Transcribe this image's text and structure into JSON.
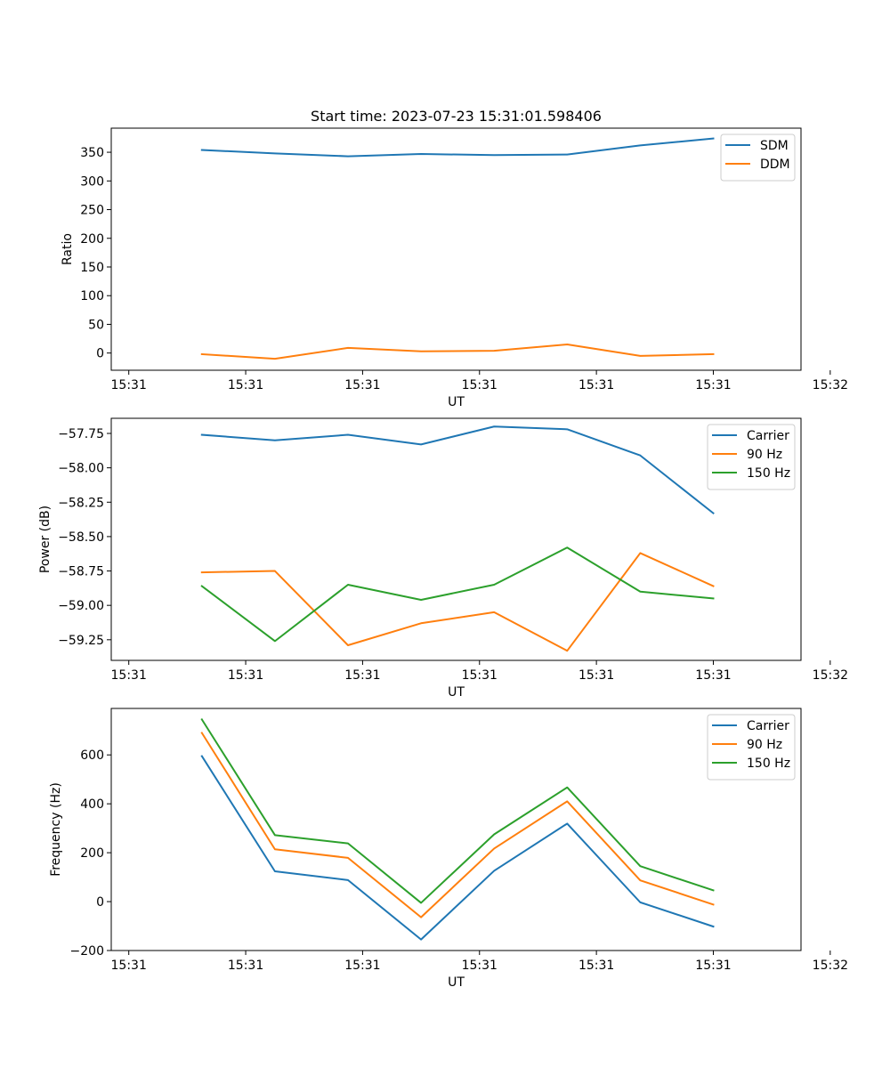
{
  "figure_title": "Start time: 2023-07-23 15:31:01.598406",
  "colors": {
    "c0": "#1f77b4",
    "c1": "#ff7f0e",
    "c2": "#2ca02c"
  },
  "chart_data": [
    {
      "type": "line",
      "title": "Start time: 2023-07-23 15:31:01.598406",
      "xlabel": "UT",
      "ylabel": "Ratio",
      "x": [
        0.5,
        1,
        1.5,
        2,
        2.5,
        3,
        3.5,
        4
      ],
      "xlim": [
        -0.12,
        4.6
      ],
      "x_ticks": [
        0,
        0.8,
        1.6,
        2.4,
        3.2,
        4.0,
        4.8
      ],
      "x_tick_labels": [
        "15:31",
        "15:31",
        "15:31",
        "15:31",
        "15:31",
        "15:31",
        "15:32"
      ],
      "ylim": [
        -30,
        392
      ],
      "y_ticks": [
        0,
        50,
        100,
        150,
        200,
        250,
        300,
        350
      ],
      "y_tick_labels": [
        "0",
        "50",
        "100",
        "150",
        "200",
        "250",
        "300",
        "350"
      ],
      "legend_position": "top-right",
      "grid": false,
      "series": [
        {
          "name": "SDM",
          "color_key": "c0",
          "values": [
            354,
            348,
            343,
            347,
            345,
            346,
            362,
            374
          ]
        },
        {
          "name": "DDM",
          "color_key": "c1",
          "values": [
            -2,
            -10,
            9,
            3,
            4,
            15,
            -5,
            -2
          ]
        }
      ]
    },
    {
      "type": "line",
      "title": "",
      "xlabel": "UT",
      "ylabel": "Power (dB)",
      "x": [
        0.5,
        1,
        1.5,
        2,
        2.5,
        3,
        3.5,
        4
      ],
      "xlim": [
        -0.12,
        4.6
      ],
      "x_ticks": [
        0,
        0.8,
        1.6,
        2.4,
        3.2,
        4.0,
        4.8
      ],
      "x_tick_labels": [
        "15:31",
        "15:31",
        "15:31",
        "15:31",
        "15:31",
        "15:31",
        "15:32"
      ],
      "ylim": [
        -59.4,
        -57.64
      ],
      "y_ticks": [
        -59.25,
        -59.0,
        -58.75,
        -58.5,
        -58.25,
        -58.0,
        -57.75
      ],
      "y_tick_labels": [
        "−59.25",
        "−59.00",
        "−58.75",
        "−58.50",
        "−58.25",
        "−58.00",
        "−57.75"
      ],
      "legend_position": "top-right",
      "grid": false,
      "series": [
        {
          "name": "Carrier",
          "color_key": "c0",
          "values": [
            -57.76,
            -57.8,
            -57.76,
            -57.83,
            -57.7,
            -57.72,
            -57.91,
            -58.33
          ]
        },
        {
          "name": "90 Hz",
          "color_key": "c1",
          "values": [
            -58.76,
            -58.75,
            -59.29,
            -59.13,
            -59.05,
            -59.33,
            -58.62,
            -58.86
          ]
        },
        {
          "name": "150 Hz",
          "color_key": "c2",
          "values": [
            -58.86,
            -59.26,
            -58.85,
            -58.96,
            -58.85,
            -58.58,
            -58.9,
            -58.95
          ]
        }
      ]
    },
    {
      "type": "line",
      "title": "",
      "xlabel": "UT",
      "ylabel": "Frequency (Hz)",
      "x": [
        0.5,
        1,
        1.5,
        2,
        2.5,
        3,
        3.5,
        4
      ],
      "xlim": [
        -0.12,
        4.6
      ],
      "x_ticks": [
        0,
        0.8,
        1.6,
        2.4,
        3.2,
        4.0,
        4.8
      ],
      "x_tick_labels": [
        "15:31",
        "15:31",
        "15:31",
        "15:31",
        "15:31",
        "15:31",
        "15:32"
      ],
      "ylim": [
        -200,
        790
      ],
      "y_ticks": [
        -200,
        0,
        200,
        400,
        600
      ],
      "y_tick_labels": [
        "−200",
        "0",
        "200",
        "400",
        "600"
      ],
      "legend_position": "top-right",
      "grid": false,
      "series": [
        {
          "name": "Carrier",
          "color_key": "c0",
          "values": [
            595,
            124,
            88,
            -155,
            126,
            319,
            -3,
            -102
          ]
        },
        {
          "name": "90 Hz",
          "color_key": "c1",
          "values": [
            690,
            214,
            179,
            -64,
            217,
            410,
            87,
            -12
          ]
        },
        {
          "name": "150 Hz",
          "color_key": "c2",
          "values": [
            745,
            272,
            238,
            -5,
            275,
            467,
            145,
            46
          ]
        }
      ]
    }
  ]
}
